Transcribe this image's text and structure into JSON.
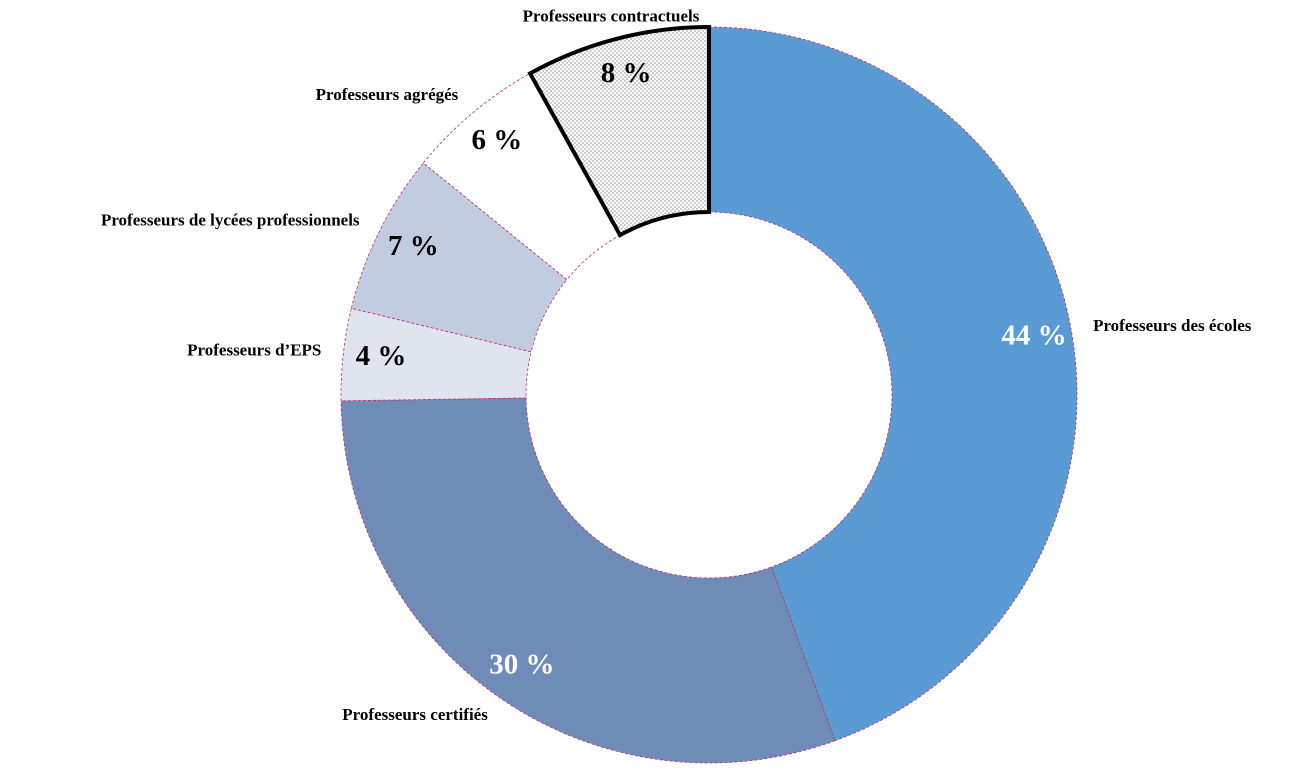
{
  "chart_data": {
    "type": "donut",
    "categories": [
      "Professeurs des écoles",
      "Professeurs certifiés",
      "Professeurs d’EPS",
      "Professeurs de lycées professionnels",
      "Professeurs agrégés",
      "Professeurs contractuels"
    ],
    "values": [
      44,
      30,
      4,
      7,
      6,
      8
    ],
    "value_labels": [
      "44 %",
      "30 %",
      "4 %",
      "7 %",
      "6 %",
      "8 %"
    ],
    "colors": [
      "#5b9bd5",
      "#6f8cb8",
      "#dfe4ee",
      "#c2cce0",
      "#ffffff",
      "#ffffff"
    ],
    "patterns": [
      null,
      null,
      null,
      null,
      null,
      "dots"
    ],
    "highlighted": [
      false,
      false,
      false,
      false,
      false,
      true
    ]
  }
}
